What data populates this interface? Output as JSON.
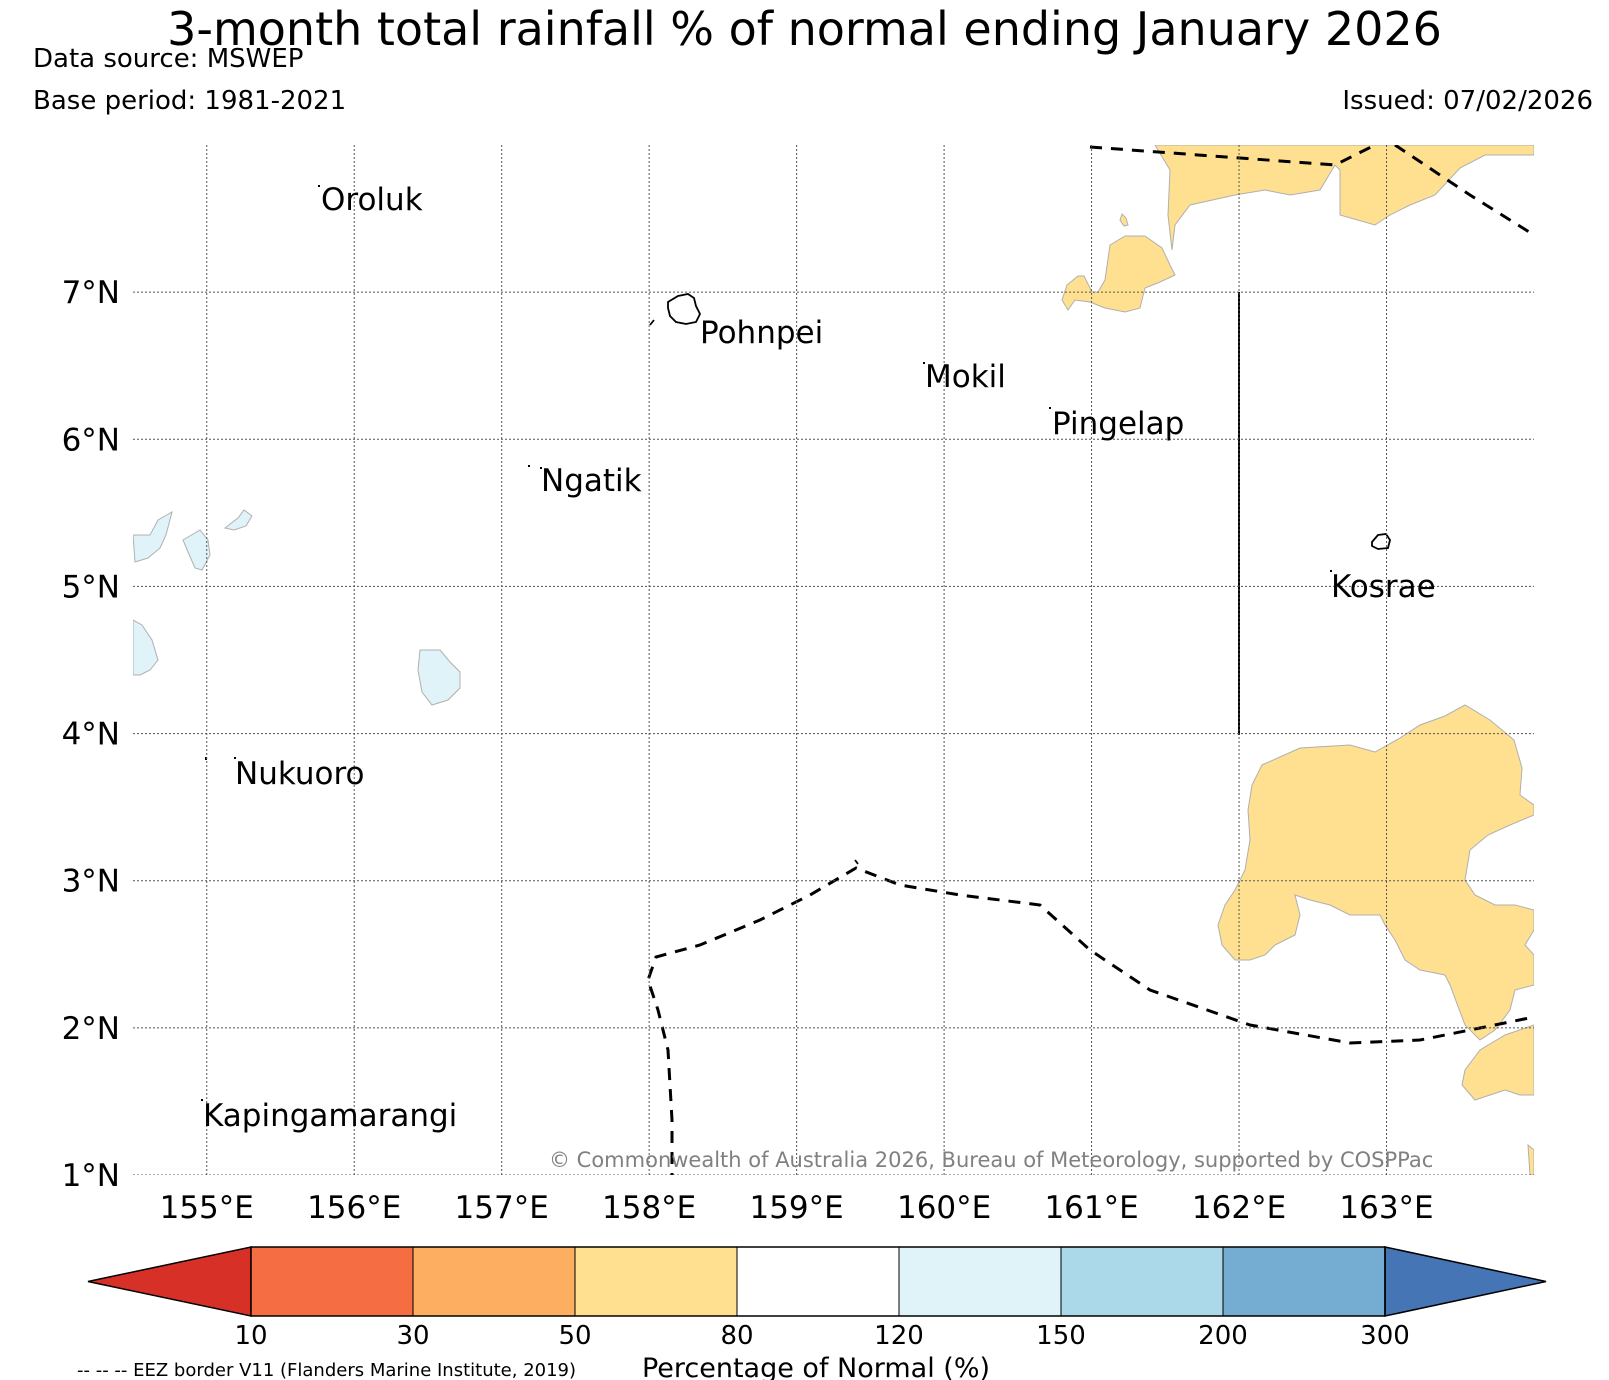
{
  "title": "3-month total rainfall % of normal ending January 2026",
  "data_source": "Data source: MSWEP",
  "base_period": "Base period: 1981-2021",
  "issued": "Issued: 07/02/2026",
  "map": {
    "lon_range": [
      154.5,
      164.0
    ],
    "lat_range": [
      1.0,
      8.0
    ],
    "lat_labels": [
      "7°N",
      "6°N",
      "5°N",
      "4°N",
      "3°N",
      "2°N",
      "1°N"
    ],
    "lon_labels": [
      "155°E",
      "156°E",
      "157°E",
      "158°E",
      "159°E",
      "160°E",
      "161°E",
      "162°E",
      "163°E"
    ],
    "gridlines": true,
    "places": [
      "Oroluk",
      "Pohnpei",
      "Mokil",
      "Pingelap",
      "Ngatik",
      "Kosrae",
      "Nukuoro",
      "Kapingamarangi"
    ],
    "copyright": "© Commonwealth of Australia 2026, Bureau of Meteorology, supported by COSPPac",
    "colors": {
      "below_50_80": "#fee090",
      "above_120_150": "#e0f3f8",
      "outline": "#000000"
    }
  },
  "colorbar": {
    "label": "Percentage of Normal (%)",
    "ticks": [
      "10",
      "30",
      "50",
      "80",
      "120",
      "150",
      "200",
      "300"
    ],
    "colors": [
      "#d73027",
      "#f46d43",
      "#fdae61",
      "#fee090",
      "#ffffff",
      "#e0f3f8",
      "#abd9e9",
      "#74add1",
      "#4575b4"
    ],
    "extend": "both"
  },
  "eez_note": "-- -- -- EEZ border V11 (Flanders Marine Institute, 2019)"
}
